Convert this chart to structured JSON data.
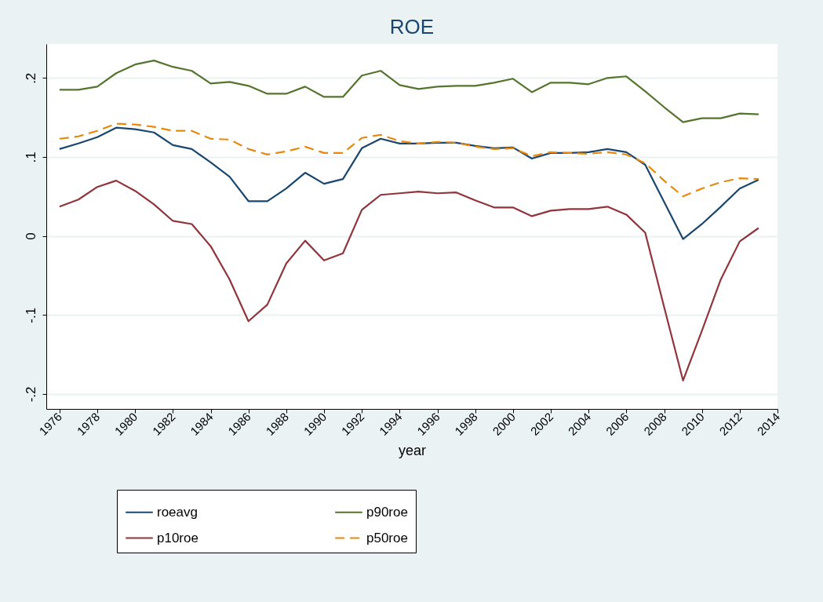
{
  "chart_data": {
    "type": "line",
    "title": "ROE",
    "xlabel": "year",
    "x": [
      1976,
      1977,
      1978,
      1979,
      1980,
      1981,
      1982,
      1983,
      1984,
      1985,
      1986,
      1987,
      1988,
      1989,
      1990,
      1991,
      1992,
      1993,
      1994,
      1995,
      1996,
      1997,
      1998,
      1999,
      2000,
      2001,
      2002,
      2003,
      2004,
      2005,
      2006,
      2007,
      2008,
      2009,
      2010,
      2011,
      2012,
      2013
    ],
    "series": [
      {
        "name": "roeavg",
        "color": "#1a476f",
        "line_style": "solid",
        "values": [
          0.11,
          0.117,
          0.125,
          0.137,
          0.135,
          0.131,
          0.115,
          0.11,
          0.093,
          0.075,
          0.044,
          0.044,
          0.06,
          0.08,
          0.066,
          0.072,
          0.111,
          0.123,
          0.117,
          0.117,
          0.118,
          0.118,
          0.114,
          0.111,
          0.112,
          0.098,
          0.105,
          0.105,
          0.106,
          0.11,
          0.106,
          0.09,
          0.043,
          -0.004,
          0.015,
          0.037,
          0.06,
          0.071
        ]
      },
      {
        "name": "p10roe",
        "color": "#90353b",
        "line_style": "solid",
        "values": [
          0.037,
          0.046,
          0.062,
          0.07,
          0.057,
          0.04,
          0.019,
          0.015,
          -0.013,
          -0.055,
          -0.108,
          -0.087,
          -0.035,
          -0.006,
          -0.031,
          -0.022,
          0.033,
          0.052,
          0.054,
          0.056,
          0.054,
          0.055,
          0.045,
          0.036,
          0.036,
          0.025,
          0.032,
          0.034,
          0.034,
          0.037,
          0.027,
          0.004,
          -0.09,
          -0.183,
          -0.12,
          -0.055,
          -0.007,
          0.01
        ]
      },
      {
        "name": "p90roe",
        "color": "#55752f",
        "line_style": "solid",
        "values": [
          0.185,
          0.185,
          0.189,
          0.206,
          0.217,
          0.222,
          0.214,
          0.209,
          0.193,
          0.195,
          0.19,
          0.18,
          0.18,
          0.189,
          0.176,
          0.176,
          0.203,
          0.209,
          0.191,
          0.186,
          0.189,
          0.19,
          0.19,
          0.194,
          0.199,
          0.182,
          0.194,
          0.194,
          0.192,
          0.2,
          0.202,
          0.183,
          0.163,
          0.144,
          0.149,
          0.149,
          0.155,
          0.154
        ]
      },
      {
        "name": "p50roe",
        "color": "#e8890c",
        "line_style": "dashed",
        "values": [
          0.123,
          0.126,
          0.133,
          0.142,
          0.141,
          0.138,
          0.133,
          0.133,
          0.123,
          0.122,
          0.11,
          0.103,
          0.107,
          0.113,
          0.105,
          0.105,
          0.124,
          0.128,
          0.12,
          0.117,
          0.119,
          0.118,
          0.113,
          0.11,
          0.111,
          0.101,
          0.106,
          0.105,
          0.104,
          0.106,
          0.103,
          0.092,
          0.07,
          0.05,
          0.06,
          0.068,
          0.073,
          0.072
        ]
      }
    ],
    "xlim": [
      1975.3,
      2014
    ],
    "xticks": [
      1976,
      1978,
      1980,
      1982,
      1984,
      1986,
      1988,
      1990,
      1992,
      1994,
      1996,
      1998,
      2000,
      2002,
      2004,
      2006,
      2008,
      2010,
      2012,
      2014
    ],
    "ylim": [
      -0.219,
      0.243
    ],
    "yticks": [
      {
        "value": -0.2,
        "label": "-.2"
      },
      {
        "value": -0.1,
        "label": "-.1"
      },
      {
        "value": 0,
        "label": "0"
      },
      {
        "value": 0.1,
        "label": ".1"
      },
      {
        "value": 0.2,
        "label": ".2"
      }
    ],
    "grid": "y",
    "legend": "bottom",
    "marker": "none"
  }
}
